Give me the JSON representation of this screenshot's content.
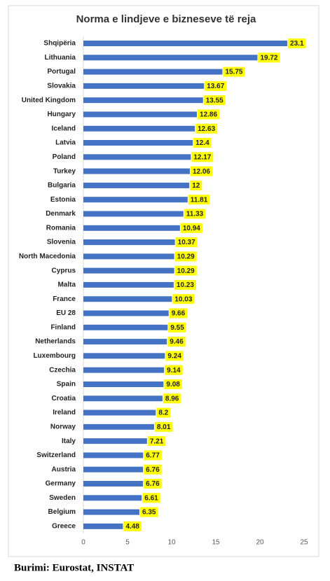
{
  "chart_data": {
    "type": "bar",
    "orientation": "horizontal",
    "title": "Norma e lindjeve e bizneseve të reja",
    "categories": [
      "Shqipëria",
      "Lithuania",
      "Portugal",
      "Slovakia",
      "United Kingdom",
      "Hungary",
      "Iceland",
      "Latvia",
      "Poland",
      "Turkey",
      "Bulgaria",
      "Estonia",
      "Denmark",
      "Romania",
      "Slovenia",
      "North Macedonia",
      "Cyprus",
      "Malta",
      "France",
      "EU 28",
      "Finland",
      "Netherlands",
      "Luxembourg",
      "Czechia",
      "Spain",
      "Croatia",
      "Ireland",
      "Norway",
      "Italy",
      "Switzerland",
      "Austria",
      "Germany",
      "Sweden",
      "Belgium",
      "Greece"
    ],
    "values": [
      23.1,
      19.72,
      15.75,
      13.67,
      13.55,
      12.86,
      12.63,
      12.4,
      12.17,
      12.06,
      12,
      11.81,
      11.33,
      10.94,
      10.37,
      10.29,
      10.29,
      10.23,
      10.03,
      9.66,
      9.55,
      9.46,
      9.24,
      9.14,
      9.08,
      8.96,
      8.2,
      8.01,
      7.21,
      6.77,
      6.76,
      6.76,
      6.61,
      6.35,
      4.48
    ],
    "color": "#4472c4",
    "label_background": "#ffff00",
    "xlim": [
      0,
      25
    ],
    "xticks": [
      0,
      5,
      10,
      15,
      20,
      25
    ],
    "grid": false
  },
  "source": "Burimi: Eurostat, INSTAT"
}
